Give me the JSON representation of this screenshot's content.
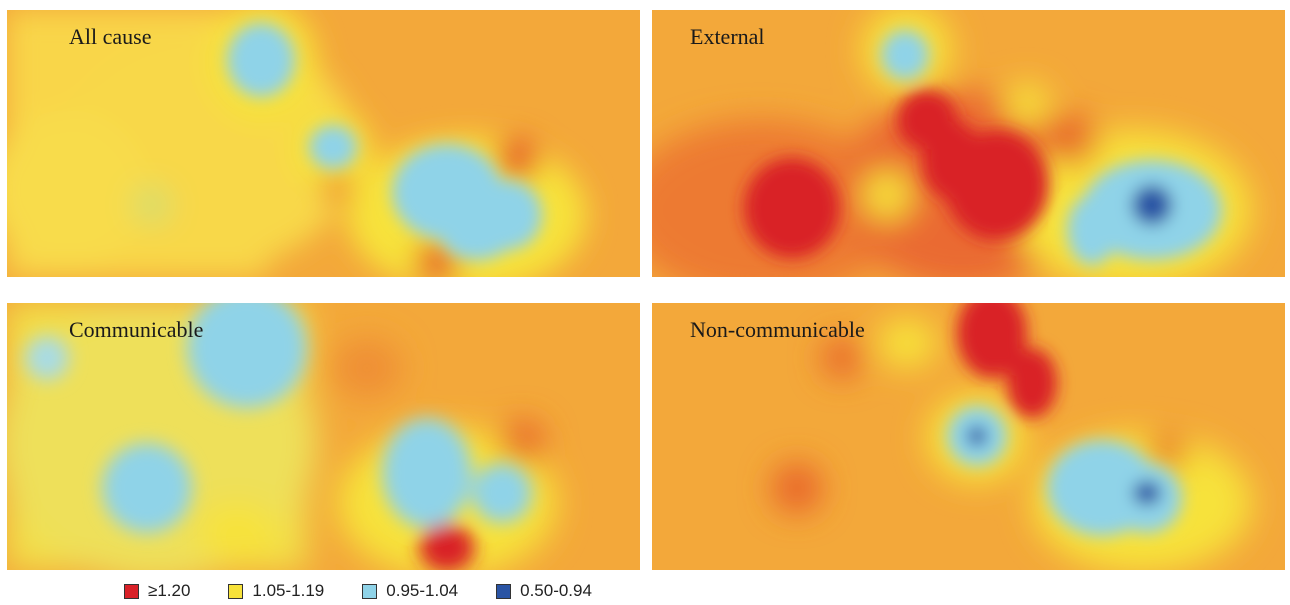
{
  "panels": [
    {
      "title": "All cause"
    },
    {
      "title": "External"
    },
    {
      "title": "Communicable"
    },
    {
      "title": "Non-communicable"
    }
  ],
  "legend": [
    {
      "label": "≥1.20",
      "color": "#d92128"
    },
    {
      "label": "1.05-1.19",
      "color": "#f7e23a"
    },
    {
      "label": "0.95-1.04",
      "color": "#8fd3e8"
    },
    {
      "label": "0.50-0.94",
      "color": "#2a54a4"
    }
  ],
  "colors": {
    "background_orange": "#f3a83a",
    "high_red": "#d92128",
    "mid_yellow": "#f7e23a",
    "low_cyan": "#8fd3e8",
    "lowest_blue": "#2a54a4"
  }
}
